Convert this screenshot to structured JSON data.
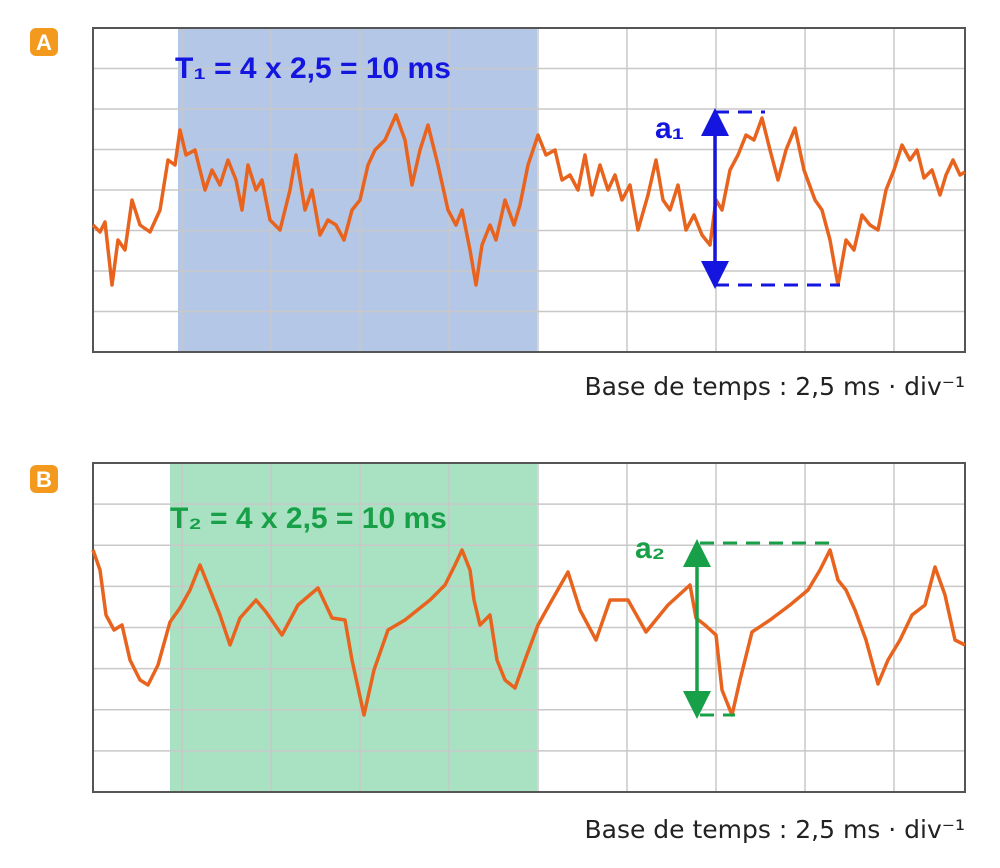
{
  "panels": [
    {
      "label": "A",
      "period": "T₁ = 4 x 2,5 = 10 ms",
      "amplitude": "a₁",
      "caption": "Base de temps : 2,5 ms · div⁻¹"
    },
    {
      "label": "B",
      "period": "T₂ = 4 x 2,5 = 10 ms",
      "amplitude": "a₂",
      "caption": "Base de temps : 2,5 ms · div⁻¹"
    }
  ]
}
